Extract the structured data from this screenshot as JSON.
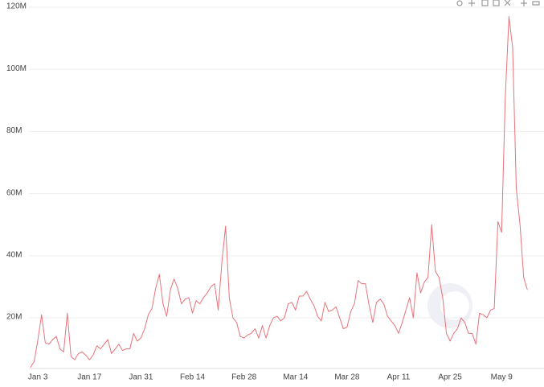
{
  "chart_data": {
    "type": "line",
    "categories": [
      null,
      null,
      "Jan 3",
      null,
      null,
      null,
      null,
      null,
      null,
      null,
      null,
      null,
      null,
      null,
      null,
      null,
      "Jan 17",
      null,
      null,
      null,
      null,
      null,
      null,
      null,
      null,
      null,
      null,
      null,
      null,
      null,
      "Jan 31",
      null,
      null,
      null,
      null,
      null,
      null,
      null,
      null,
      null,
      null,
      null,
      null,
      null,
      "Feb 14",
      null,
      null,
      null,
      null,
      null,
      null,
      null,
      null,
      null,
      null,
      null,
      null,
      null,
      "Feb 28",
      null,
      null,
      null,
      null,
      null,
      null,
      null,
      null,
      null,
      null,
      null,
      null,
      null,
      "Mar 14",
      null,
      null,
      null,
      null,
      null,
      null,
      null,
      null,
      null,
      null,
      null,
      null,
      null,
      "Mar 28",
      null,
      null,
      null,
      null,
      null,
      null,
      null,
      null,
      null,
      null,
      null,
      null,
      null,
      "Apr 11",
      null,
      null,
      null,
      null,
      null,
      null,
      null,
      null,
      null,
      null,
      null,
      null,
      null,
      "Apr 25",
      null,
      null,
      null,
      null,
      null,
      null,
      null,
      null,
      null,
      null,
      null,
      null,
      null,
      "May 9",
      null,
      null,
      null,
      null,
      null,
      null,
      null
    ],
    "series": [
      {
        "color": "#e8737a",
        "values": [
          4000000.0,
          6000000.0,
          13000000.0,
          21000000.0,
          12000000.0,
          11500000.0,
          13000000.0,
          14000000.0,
          10000000.0,
          9000000.0,
          21500000.0,
          7500000.0,
          6500000.0,
          8500000.0,
          9000000.0,
          8000000.0,
          6500000.0,
          8000000.0,
          11000000.0,
          10000000.0,
          11500000.0,
          13000000.0,
          8500000.0,
          10000000.0,
          11500000.0,
          9500000.0,
          10000000.0,
          10000000.0,
          15000000.0,
          12500000.0,
          13500000.0,
          16500000.0,
          21000000.0,
          23000000.0,
          29500000.0,
          34000000.0,
          24500000.0,
          20500000.0,
          29000000.0,
          32500000.0,
          29500000.0,
          24500000.0,
          26000000.0,
          26500000.0,
          21500000.0,
          25500000.0,
          24500000.0,
          26500000.0,
          28000000.0,
          30000000.0,
          31000000.0,
          22500000.0,
          38000000.0,
          49500000.0,
          26500000.0,
          20000000.0,
          18500000.0,
          14000000.0,
          13500000.0,
          14500000.0,
          15000000.0,
          16500000.0,
          13500000.0,
          17500000.0,
          13500000.0,
          17500000.0,
          20000000.0,
          20500000.0,
          19000000.0,
          20000000.0,
          24500000.0,
          25000000.0,
          22500000.0,
          27000000.0,
          27000000.0,
          28500000.0,
          26000000.0,
          24000000.0,
          20500000.0,
          19000000.0,
          25000000.0,
          22000000.0,
          22500000.0,
          23500000.0,
          20000000.0,
          16500000.0,
          17000000.0,
          22000000.0,
          24500000.0,
          32000000.0,
          31000000.0,
          31000000.0,
          24000000.0,
          18500000.0,
          25000000.0,
          26000000.0,
          24500000.0,
          20500000.0,
          19000000.0,
          17500000.0,
          15000000.0,
          18500000.0,
          22500000.0,
          26500000.0,
          20000000.0,
          34500000.0,
          28000000.0,
          31500000.0,
          33000000.0,
          50000000.0,
          35000000.0,
          33000000.0,
          26500000.0,
          15000000.0,
          12500000.0,
          15000000.0,
          16500000.0,
          20000000.0,
          18500000.0,
          15000000.0,
          15000000.0,
          11500000.0,
          21500000.0,
          21000000.0,
          20000000.0,
          22500000.0,
          23000000.0,
          51000000.0,
          47500000.0,
          91000000.0,
          117000000.0,
          107000000.0,
          61500000.0,
          50000000.0,
          33000000.0,
          29000000.0
        ]
      }
    ],
    "ylim": [
      4000000,
      120000000
    ],
    "yticks": [
      {
        "value": 20000000,
        "label": "20M"
      },
      {
        "value": 40000000,
        "label": "40M"
      },
      {
        "value": 60000000,
        "label": "60M"
      },
      {
        "value": 80000000,
        "label": "80M"
      },
      {
        "value": 100000000,
        "label": "100M"
      },
      {
        "value": 120000000,
        "label": "120M"
      }
    ],
    "grid": true
  }
}
